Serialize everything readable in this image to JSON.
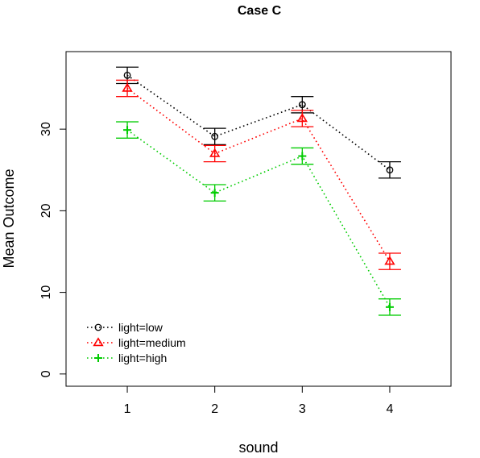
{
  "chart_data": {
    "type": "line",
    "title": "Case C",
    "xlabel": "sound",
    "ylabel": "Mean Outcome",
    "x": [
      1,
      2,
      3,
      4
    ],
    "x_tick_labels": [
      "1",
      "2",
      "3",
      "4"
    ],
    "y_ticks": [
      0,
      10,
      20,
      30
    ],
    "y_tick_labels": [
      "0",
      "10",
      "20",
      "30"
    ],
    "xlim": [
      0.3,
      4.7
    ],
    "ylim": [
      -1.5,
      39.5
    ],
    "grid": false,
    "legend_position": "bottom-left",
    "error_bar_halfwidth": 1.0,
    "series": [
      {
        "name": "light=low",
        "color": "#000000",
        "marker": "circle",
        "values": [
          36.6,
          29.1,
          33.0,
          25.0
        ]
      },
      {
        "name": "light=medium",
        "color": "#ff0000",
        "marker": "triangle",
        "values": [
          35.0,
          27.0,
          31.3,
          13.8
        ]
      },
      {
        "name": "light=high",
        "color": "#00cc00",
        "marker": "plus",
        "values": [
          29.9,
          22.2,
          26.7,
          8.2
        ]
      }
    ]
  }
}
